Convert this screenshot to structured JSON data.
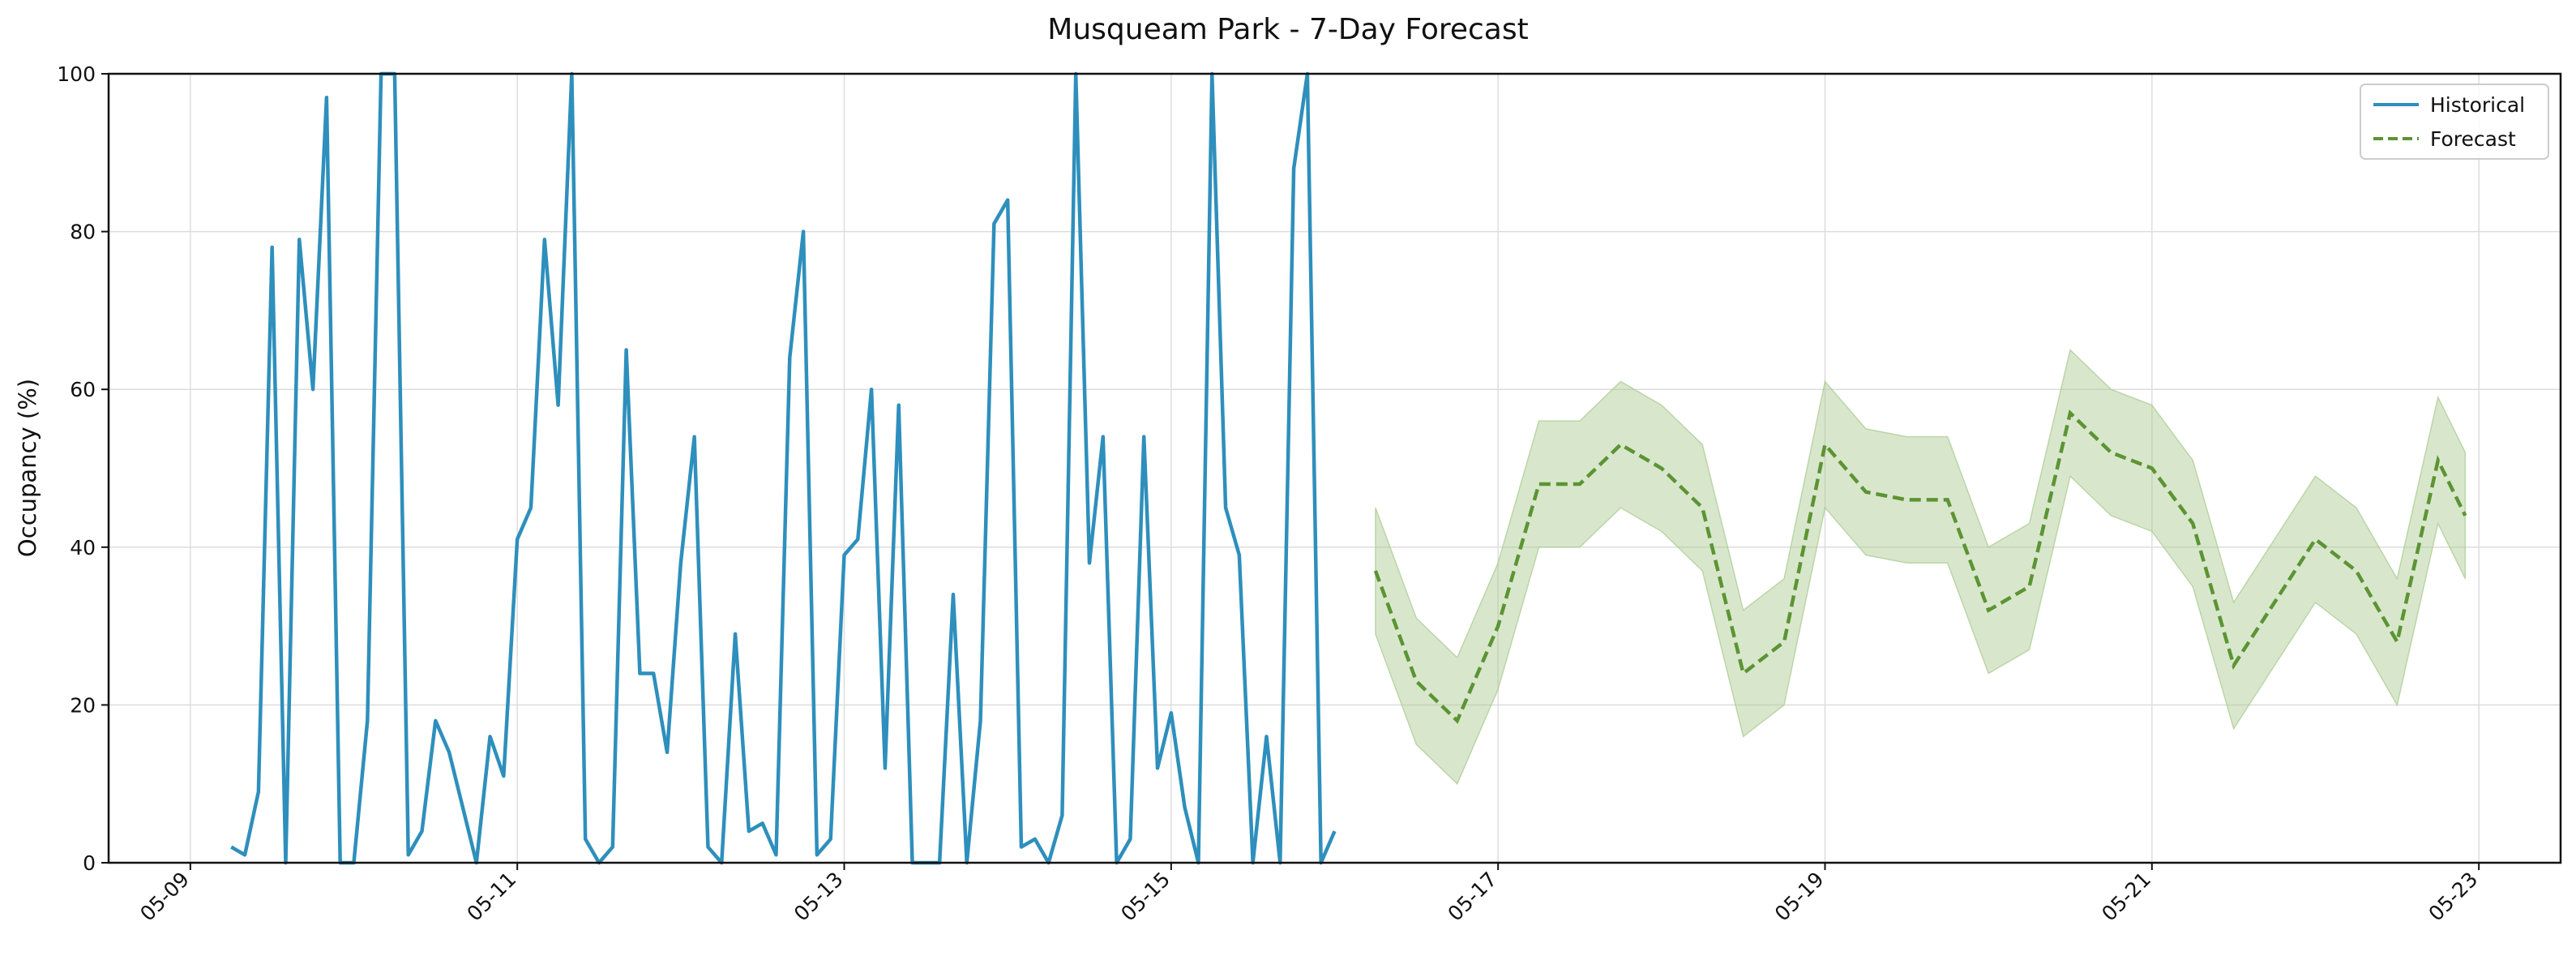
{
  "chart_data": {
    "type": "line",
    "title": "Musqueam Park - 7-Day Forecast",
    "xlabel": "",
    "ylabel": "Occupancy (%)",
    "ylim": [
      0,
      100
    ],
    "xlim": [
      "2024-05-08T12:00",
      "2024-05-23T12:00"
    ],
    "grid": true,
    "legend_position": "top-right",
    "x_ticks": [
      "05-09",
      "05-11",
      "05-13",
      "05-15",
      "05-17",
      "05-19",
      "05-21",
      "05-23"
    ],
    "y_ticks": [
      0,
      20,
      40,
      60,
      80,
      100
    ],
    "colors": {
      "historical": "#2e8fbc",
      "forecast": "#5c9434",
      "band": "#a8c98f"
    },
    "series": [
      {
        "name": "Historical",
        "style": "solid",
        "x": [
          "2024-05-09T06:00",
          "2024-05-09T08:00",
          "2024-05-09T10:00",
          "2024-05-09T12:00",
          "2024-05-09T14:00",
          "2024-05-09T16:00",
          "2024-05-09T18:00",
          "2024-05-09T20:00",
          "2024-05-09T22:00",
          "2024-05-10T00:00",
          "2024-05-10T02:00",
          "2024-05-10T04:00",
          "2024-05-10T06:00",
          "2024-05-10T08:00",
          "2024-05-10T10:00",
          "2024-05-10T12:00",
          "2024-05-10T14:00",
          "2024-05-10T16:00",
          "2024-05-10T18:00",
          "2024-05-10T20:00",
          "2024-05-10T22:00",
          "2024-05-11T00:00",
          "2024-05-11T02:00",
          "2024-05-11T04:00",
          "2024-05-11T06:00",
          "2024-05-11T08:00",
          "2024-05-11T10:00",
          "2024-05-11T12:00",
          "2024-05-11T14:00",
          "2024-05-11T16:00",
          "2024-05-11T18:00",
          "2024-05-11T20:00",
          "2024-05-11T22:00",
          "2024-05-12T00:00",
          "2024-05-12T02:00",
          "2024-05-12T04:00",
          "2024-05-12T06:00",
          "2024-05-12T08:00",
          "2024-05-12T10:00",
          "2024-05-12T12:00",
          "2024-05-12T14:00",
          "2024-05-12T16:00",
          "2024-05-12T18:00",
          "2024-05-12T20:00",
          "2024-05-12T22:00",
          "2024-05-13T00:00",
          "2024-05-13T02:00",
          "2024-05-13T04:00",
          "2024-05-13T06:00",
          "2024-05-13T08:00",
          "2024-05-13T10:00",
          "2024-05-13T12:00",
          "2024-05-13T14:00",
          "2024-05-13T16:00",
          "2024-05-13T18:00",
          "2024-05-13T20:00",
          "2024-05-13T22:00",
          "2024-05-14T00:00",
          "2024-05-14T02:00",
          "2024-05-14T04:00",
          "2024-05-14T06:00",
          "2024-05-14T08:00",
          "2024-05-14T10:00",
          "2024-05-14T12:00",
          "2024-05-14T14:00",
          "2024-05-14T16:00",
          "2024-05-14T18:00",
          "2024-05-14T20:00",
          "2024-05-14T22:00",
          "2024-05-15T00:00",
          "2024-05-15T02:00",
          "2024-05-15T04:00",
          "2024-05-15T06:00",
          "2024-05-15T08:00",
          "2024-05-15T10:00",
          "2024-05-15T12:00",
          "2024-05-15T14:00",
          "2024-05-15T16:00",
          "2024-05-15T18:00",
          "2024-05-15T20:00",
          "2024-05-15T22:00",
          "2024-05-16T00:00"
        ],
        "values": [
          2,
          1,
          9,
          78,
          0,
          79,
          60,
          97,
          0,
          0,
          18,
          100,
          100,
          1,
          4,
          18,
          14,
          7,
          0,
          16,
          11,
          41,
          45,
          79,
          58,
          100,
          3,
          0,
          2,
          65,
          24,
          24,
          14,
          38,
          54,
          2,
          0,
          29,
          4,
          5,
          1,
          64,
          80,
          1,
          3,
          39,
          41,
          60,
          12,
          58,
          0,
          0,
          0,
          34,
          0,
          18,
          81,
          84,
          2,
          3,
          0,
          6,
          100,
          38,
          54,
          0,
          3,
          54,
          12,
          19,
          7,
          0,
          100,
          45,
          39,
          0,
          16,
          0,
          88,
          100,
          0,
          4
        ]
      },
      {
        "name": "Forecast",
        "style": "dashed",
        "x": [
          "2024-05-16T06:00",
          "2024-05-16T12:00",
          "2024-05-16T18:00",
          "2024-05-17T00:00",
          "2024-05-17T06:00",
          "2024-05-17T12:00",
          "2024-05-17T18:00",
          "2024-05-18T00:00",
          "2024-05-18T06:00",
          "2024-05-18T12:00",
          "2024-05-18T18:00",
          "2024-05-19T00:00",
          "2024-05-19T06:00",
          "2024-05-19T12:00",
          "2024-05-19T18:00",
          "2024-05-20T00:00",
          "2024-05-20T06:00",
          "2024-05-20T12:00",
          "2024-05-20T18:00",
          "2024-05-21T00:00",
          "2024-05-21T06:00",
          "2024-05-21T12:00",
          "2024-05-21T18:00",
          "2024-05-22T00:00",
          "2024-05-22T06:00",
          "2024-05-22T12:00",
          "2024-05-22T18:00",
          "2024-05-22T22:00"
        ],
        "values": [
          37,
          23,
          18,
          30,
          48,
          48,
          53,
          50,
          45,
          24,
          28,
          53,
          47,
          46,
          46,
          32,
          35,
          57,
          52,
          50,
          43,
          25,
          33,
          41,
          37,
          28,
          51,
          44
        ],
        "band_lower": [
          29,
          15,
          10,
          22,
          40,
          40,
          45,
          42,
          37,
          16,
          20,
          45,
          39,
          38,
          38,
          24,
          27,
          49,
          44,
          42,
          35,
          17,
          25,
          33,
          29,
          20,
          43,
          36
        ],
        "band_upper": [
          45,
          31,
          26,
          38,
          56,
          56,
          61,
          58,
          53,
          32,
          36,
          61,
          55,
          54,
          54,
          40,
          43,
          65,
          60,
          58,
          51,
          33,
          41,
          49,
          45,
          36,
          59,
          52
        ]
      }
    ]
  }
}
